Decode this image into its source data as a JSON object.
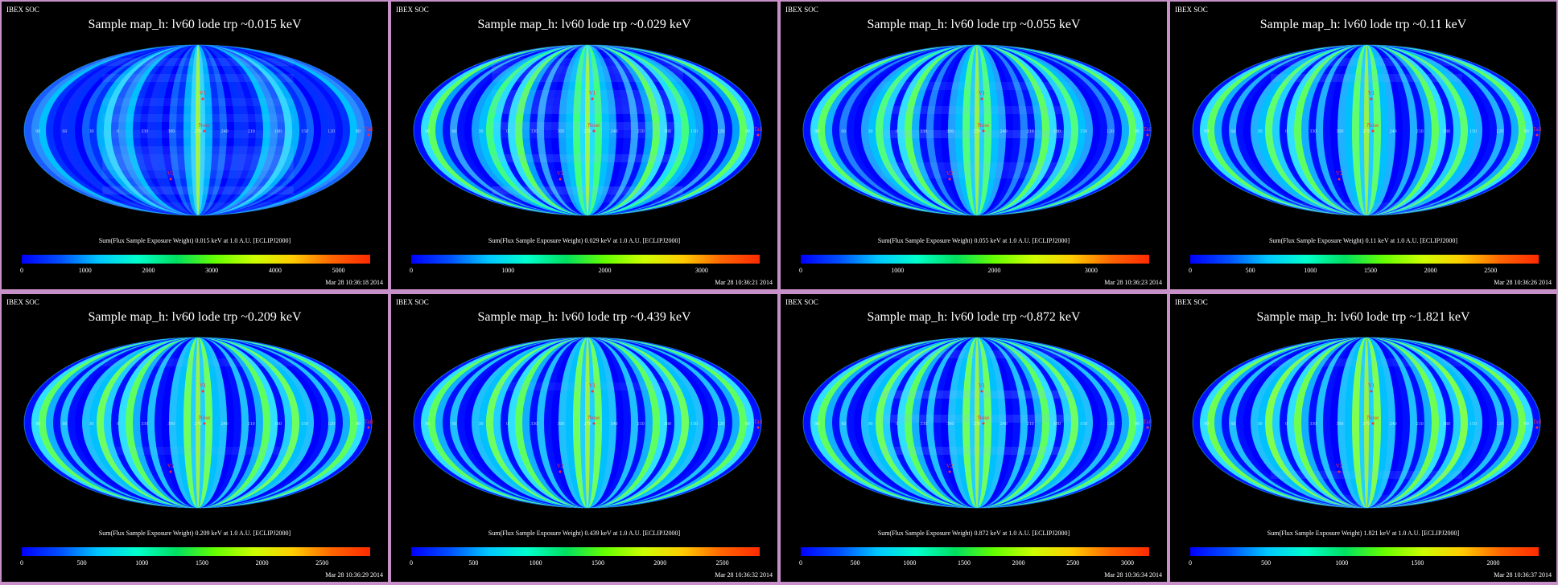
{
  "page": {
    "background": "#c890c8"
  },
  "panels": [
    {
      "header": "IBEX SOC",
      "title": "Sample map_h: lv60 lode trp ~0.015 keV",
      "caption": "Sum(Flux Sample Exposure Weight)  0.015 keV at 1.0 A.U. [ECLIPJ2000]",
      "timestamp": "Mar 28 10:36:18 2014",
      "variant": 0
    },
    {
      "header": "IBEX SOC",
      "title": "Sample map_h: lv60 lode trp ~0.029 keV",
      "caption": "Sum(Flux Sample Exposure Weight)  0.029 keV at 1.0 A.U. [ECLIPJ2000]",
      "timestamp": "Mar 28 10:36:21 2014",
      "variant": 1
    },
    {
      "header": "IBEX SOC",
      "title": "Sample map_h: lv60 lode trp ~0.055 keV",
      "caption": "Sum(Flux Sample Exposure Weight)  0.055 keV at 1.0 A.U. [ECLIPJ2000]",
      "timestamp": "Mar 28 10:36:23 2014",
      "variant": 2
    },
    {
      "header": "IBEX SOC",
      "title": "Sample map_h: lv60 lode trp ~0.11 keV",
      "caption": "Sum(Flux Sample Exposure Weight)  0.11 keV at 1.0 A.U. [ECLIPJ2000]",
      "timestamp": "Mar 28 10:36:26 2014",
      "variant": 3
    },
    {
      "header": "IBEX SOC",
      "title": "Sample map_h: lv60 lode trp ~0.209 keV",
      "caption": "Sum(Flux Sample Exposure Weight)  0.209 keV at 1.0 A.U. [ECLIPJ2000]",
      "timestamp": "Mar 28 10:36:29 2014",
      "variant": 4
    },
    {
      "header": "IBEX SOC",
      "title": "Sample map_h: lv60 lode trp ~0.439 keV",
      "caption": "Sum(Flux Sample Exposure Weight)  0.439 keV at 1.0 A.U. [ECLIPJ2000]",
      "timestamp": "Mar 28 10:36:32 2014",
      "variant": 5
    },
    {
      "header": "IBEX SOC",
      "title": "Sample map_h: lv60 lode trp ~0.872 keV",
      "caption": "Sum(Flux Sample Exposure Weight)  0.872 keV at 1.0 A.U. [ECLIPJ2000]",
      "timestamp": "Mar 28 10:36:34 2014",
      "variant": 6
    },
    {
      "header": "IBEX SOC",
      "title": "Sample map_h: lv60 lode trp ~1.821 keV",
      "caption": "Sum(Flux Sample Exposure Weight)  1.821 keV at 1.0 A.U. [ECLIPJ2000]",
      "timestamp": "Mar 28 10:36:37 2014",
      "variant": 7
    }
  ],
  "chart_data": [
    {
      "type": "heatmap",
      "title": "Sample map_h: lv60 lode trp ~0.015 keV",
      "colorbar_label": "Sum(Flux Sample Exposure Weight)  0.015 keV at 1.0 A.U. [ECLIPJ2000]",
      "colorbar_ticks": [
        "0",
        "1000",
        "2000",
        "3000",
        "4000",
        "5000"
      ],
      "colorbar_range": [
        0,
        5500
      ],
      "projection": "Mollweide",
      "map_labels": [
        "V1",
        "V2",
        "Nose",
        "Tail"
      ],
      "longitude_labels": [
        "90",
        "60",
        "30",
        "0",
        "330",
        "300",
        "270",
        "240",
        "210",
        "180",
        "150",
        "120",
        "90"
      ]
    },
    {
      "type": "heatmap",
      "title": "Sample map_h: lv60 lode trp ~0.029 keV",
      "colorbar_label": "Sum(Flux Sample Exposure Weight)  0.029 keV at 1.0 A.U. [ECLIPJ2000]",
      "colorbar_ticks": [
        "0",
        "1000",
        "2000",
        "3000"
      ],
      "colorbar_range": [
        0,
        3600
      ],
      "projection": "Mollweide",
      "map_labels": [
        "V1",
        "V2",
        "Nose",
        "Tail"
      ],
      "longitude_labels": [
        "90",
        "60",
        "30",
        "0",
        "330",
        "300",
        "270",
        "240",
        "210",
        "180",
        "150",
        "120",
        "90"
      ]
    },
    {
      "type": "heatmap",
      "title": "Sample map_h: lv60 lode trp ~0.055 keV",
      "colorbar_label": "Sum(Flux Sample Exposure Weight)  0.055 keV at 1.0 A.U. [ECLIPJ2000]",
      "colorbar_ticks": [
        "0",
        "1000",
        "2000",
        "3000"
      ],
      "colorbar_range": [
        0,
        3600
      ],
      "projection": "Mollweide",
      "map_labels": [
        "V1",
        "V2",
        "Nose",
        "Tail"
      ],
      "longitude_labels": [
        "90",
        "60",
        "30",
        "0",
        "330",
        "300",
        "270",
        "240",
        "210",
        "180",
        "150",
        "120",
        "90"
      ]
    },
    {
      "type": "heatmap",
      "title": "Sample map_h: lv60 lode trp ~0.11 keV",
      "colorbar_label": "Sum(Flux Sample Exposure Weight)  0.11 keV at 1.0 A.U. [ECLIPJ2000]",
      "colorbar_ticks": [
        "0",
        "500",
        "1000",
        "1500",
        "2000",
        "2500"
      ],
      "colorbar_range": [
        0,
        2900
      ],
      "projection": "Mollweide",
      "map_labels": [
        "V1",
        "V2",
        "Nose",
        "Tail"
      ],
      "longitude_labels": [
        "90",
        "60",
        "30",
        "0",
        "330",
        "300",
        "270",
        "240",
        "210",
        "180",
        "150",
        "120",
        "90"
      ]
    },
    {
      "type": "heatmap",
      "title": "Sample map_h: lv60 lode trp ~0.209 keV",
      "colorbar_label": "Sum(Flux Sample Exposure Weight)  0.209 keV at 1.0 A.U. [ECLIPJ2000]",
      "colorbar_ticks": [
        "0",
        "500",
        "1000",
        "1500",
        "2000",
        "2500"
      ],
      "colorbar_range": [
        0,
        2900
      ],
      "projection": "Mollweide",
      "map_labels": [
        "V1",
        "V2",
        "Nose",
        "Tail"
      ],
      "longitude_labels": [
        "90",
        "60",
        "30",
        "0",
        "330",
        "300",
        "270",
        "240",
        "210",
        "180",
        "150",
        "120",
        "90"
      ]
    },
    {
      "type": "heatmap",
      "title": "Sample map_h: lv60 lode trp ~0.439 keV",
      "colorbar_label": "Sum(Flux Sample Exposure Weight)  0.439 keV at 1.0 A.U. [ECLIPJ2000]",
      "colorbar_ticks": [
        "0",
        "500",
        "1000",
        "1500",
        "2000",
        "2500"
      ],
      "colorbar_range": [
        0,
        2800
      ],
      "projection": "Mollweide",
      "map_labels": [
        "V1",
        "V2",
        "Nose",
        "Tail"
      ],
      "longitude_labels": [
        "90",
        "60",
        "30",
        "0",
        "330",
        "300",
        "270",
        "240",
        "210",
        "180",
        "150",
        "120",
        "90"
      ]
    },
    {
      "type": "heatmap",
      "title": "Sample map_h: lv60 lode trp ~0.872 keV",
      "colorbar_label": "Sum(Flux Sample Exposure Weight)  0.872 keV at 1.0 A.U. [ECLIPJ2000]",
      "colorbar_ticks": [
        "0",
        "500",
        "1000",
        "1500",
        "2000",
        "2500",
        "3000"
      ],
      "colorbar_range": [
        0,
        3200
      ],
      "projection": "Mollweide",
      "map_labels": [
        "V1",
        "V2",
        "Nose",
        "Tail"
      ],
      "longitude_labels": [
        "90",
        "60",
        "30",
        "0",
        "330",
        "300",
        "270",
        "240",
        "210",
        "180",
        "150",
        "120",
        "90"
      ]
    },
    {
      "type": "heatmap",
      "title": "Sample map_h: lv60 lode trp ~1.821 keV",
      "colorbar_label": "Sum(Flux Sample Exposure Weight)  1.821 keV at 1.0 A.U. [ECLIPJ2000]",
      "colorbar_ticks": [
        "0",
        "500",
        "1000",
        "1500",
        "2000"
      ],
      "colorbar_range": [
        0,
        2300
      ],
      "projection": "Mollweide",
      "map_labels": [
        "V1",
        "V2",
        "Nose",
        "Tail"
      ],
      "longitude_labels": [
        "90",
        "60",
        "30",
        "0",
        "330",
        "300",
        "270",
        "240",
        "210",
        "180",
        "150",
        "120",
        "90"
      ]
    }
  ],
  "colorscale": [
    "#0000ff",
    "#0050ff",
    "#00c8ff",
    "#00ffcc",
    "#00e060",
    "#66ff00",
    "#ccff00",
    "#ffcc00",
    "#ff6600",
    "#ff2a00"
  ]
}
